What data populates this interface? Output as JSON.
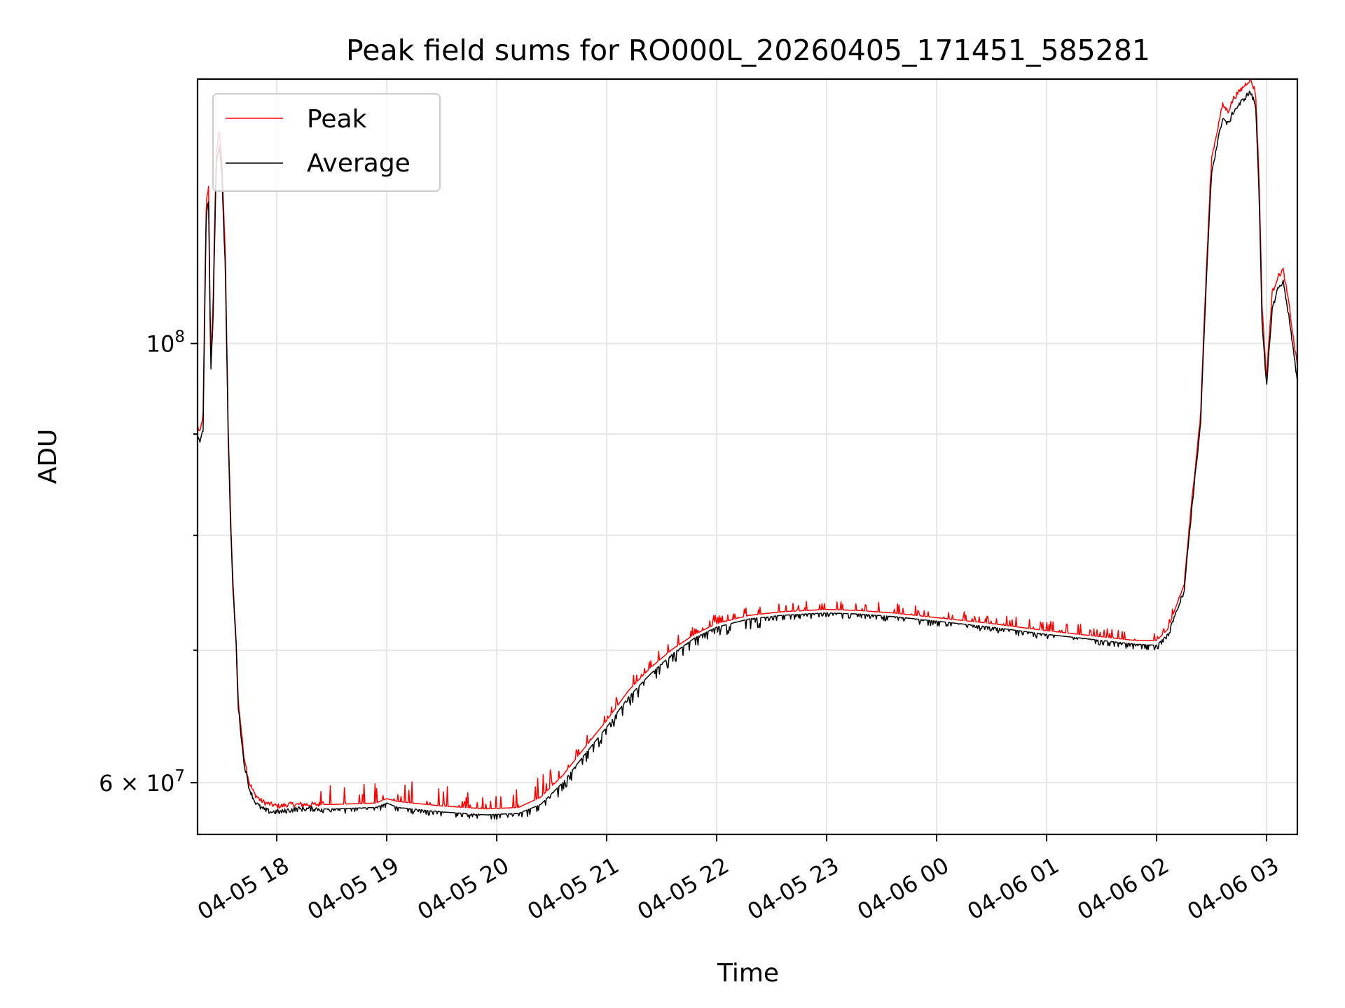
{
  "chart_data": {
    "type": "line",
    "title": "Peak field sums for RO000L_20260405_171451_585281",
    "xlabel": "Time",
    "ylabel": "ADU",
    "yscale": "log",
    "ylim": [
      56500000,
      136000000
    ],
    "xlim_hours": [
      17.28,
      3.28
    ],
    "grid": true,
    "legend_position": "top-left",
    "x_ticks": [
      {
        "hour": 18,
        "label": "04-05 18"
      },
      {
        "hour": 19,
        "label": "04-05 19"
      },
      {
        "hour": 20,
        "label": "04-05 20"
      },
      {
        "hour": 21,
        "label": "04-05 21"
      },
      {
        "hour": 22,
        "label": "04-05 22"
      },
      {
        "hour": 23,
        "label": "04-05 23"
      },
      {
        "hour": 24,
        "label": "04-06 00"
      },
      {
        "hour": 25,
        "label": "04-06 01"
      },
      {
        "hour": 26,
        "label": "04-06 02"
      },
      {
        "hour": 27,
        "label": "04-06 03"
      }
    ],
    "y_major_ticks": [
      {
        "value": 100000000,
        "base": "10",
        "exp": "8",
        "prefix": ""
      },
      {
        "value": 60000000,
        "base": "10",
        "exp": "7",
        "prefix": "6 × "
      }
    ],
    "y_minor_ticks": [
      70000000,
      80000000,
      90000000
    ],
    "series": [
      {
        "name": "Peak",
        "color": "#ff0000",
        "x": [
          17.28,
          17.3,
          17.33,
          17.36,
          17.38,
          17.4,
          17.42,
          17.45,
          17.48,
          17.5,
          17.53,
          17.56,
          17.58,
          17.6,
          17.63,
          17.65,
          17.7,
          17.75,
          17.8,
          17.85,
          17.9,
          17.95,
          18.0,
          18.05,
          18.1,
          18.2,
          18.5,
          18.9,
          19.0,
          19.1,
          19.5,
          19.9,
          20.2,
          20.4,
          20.6,
          20.8,
          21.0,
          21.2,
          21.4,
          21.6,
          21.8,
          22.0,
          22.3,
          22.6,
          23.0,
          23.3,
          23.6,
          24.0,
          24.5,
          25.0,
          25.5,
          25.8,
          26.0,
          26.1,
          26.25,
          26.4,
          26.5,
          26.6,
          26.65,
          26.7,
          26.8,
          26.85,
          26.9,
          26.93,
          26.96,
          27.0,
          27.05,
          27.1,
          27.15,
          27.2,
          27.25,
          27.28
        ],
        "y": [
          91000000,
          90000000,
          92000000,
          118000000,
          120000000,
          98000000,
          104000000,
          125000000,
          128000000,
          124000000,
          112000000,
          90000000,
          82000000,
          76000000,
          71000000,
          66000000,
          62000000,
          60000000,
          59200000,
          58800000,
          58600000,
          58500000,
          58400000,
          58400000,
          58500000,
          58500000,
          58500000,
          58600000,
          58900000,
          58700000,
          58400000,
          58200000,
          58300000,
          59000000,
          60500000,
          62500000,
          64500000,
          66800000,
          68600000,
          70100000,
          71300000,
          72200000,
          72900000,
          73200000,
          73400000,
          73300000,
          73100000,
          72700000,
          72200000,
          71600000,
          71100000,
          70800000,
          70800000,
          71700000,
          75500000,
          92000000,
          124000000,
          132000000,
          131000000,
          133000000,
          135000000,
          136000000,
          134000000,
          122000000,
          104000000,
          96000000,
          106000000,
          108000000,
          109000000,
          105000000,
          100000000,
          97500000
        ]
      },
      {
        "name": "Average",
        "color": "#000000",
        "x": [
          17.28,
          17.3,
          17.33,
          17.36,
          17.38,
          17.4,
          17.42,
          17.45,
          17.48,
          17.5,
          17.53,
          17.56,
          17.58,
          17.6,
          17.63,
          17.65,
          17.7,
          17.75,
          17.8,
          17.85,
          17.9,
          17.95,
          18.0,
          18.05,
          18.1,
          18.2,
          18.5,
          18.9,
          19.0,
          19.1,
          19.5,
          19.9,
          20.2,
          20.4,
          20.6,
          20.8,
          21.0,
          21.2,
          21.4,
          21.6,
          21.8,
          22.0,
          22.3,
          22.6,
          23.0,
          23.3,
          23.6,
          24.0,
          24.5,
          25.0,
          25.5,
          25.8,
          26.0,
          26.1,
          26.25,
          26.4,
          26.5,
          26.6,
          26.65,
          26.7,
          26.8,
          26.85,
          26.9,
          26.93,
          26.96,
          27.0,
          27.05,
          27.1,
          27.15,
          27.2,
          27.25,
          27.28
        ],
        "y": [
          90000000,
          89000000,
          90500000,
          116000000,
          118000000,
          97000000,
          102000000,
          123000000,
          126000000,
          122000000,
          110000000,
          89000000,
          81000000,
          75500000,
          70500000,
          65500000,
          61500000,
          59600000,
          58700000,
          58300000,
          58100000,
          58000000,
          58000000,
          58000000,
          58100000,
          58200000,
          58200000,
          58300000,
          58600000,
          58300000,
          58000000,
          57800000,
          57900000,
          58500000,
          60000000,
          62000000,
          64000000,
          66300000,
          68100000,
          69700000,
          71000000,
          71900000,
          72600000,
          72900000,
          73100000,
          73000000,
          72800000,
          72400000,
          71900000,
          71300000,
          70800000,
          70500000,
          70400000,
          71300000,
          75000000,
          91000000,
          122000000,
          130000000,
          129000000,
          131000000,
          133000000,
          134000000,
          132000000,
          120000000,
          102000000,
          95000000,
          104000000,
          106500000,
          107500000,
          103500000,
          98500000,
          95500000
        ]
      }
    ]
  }
}
